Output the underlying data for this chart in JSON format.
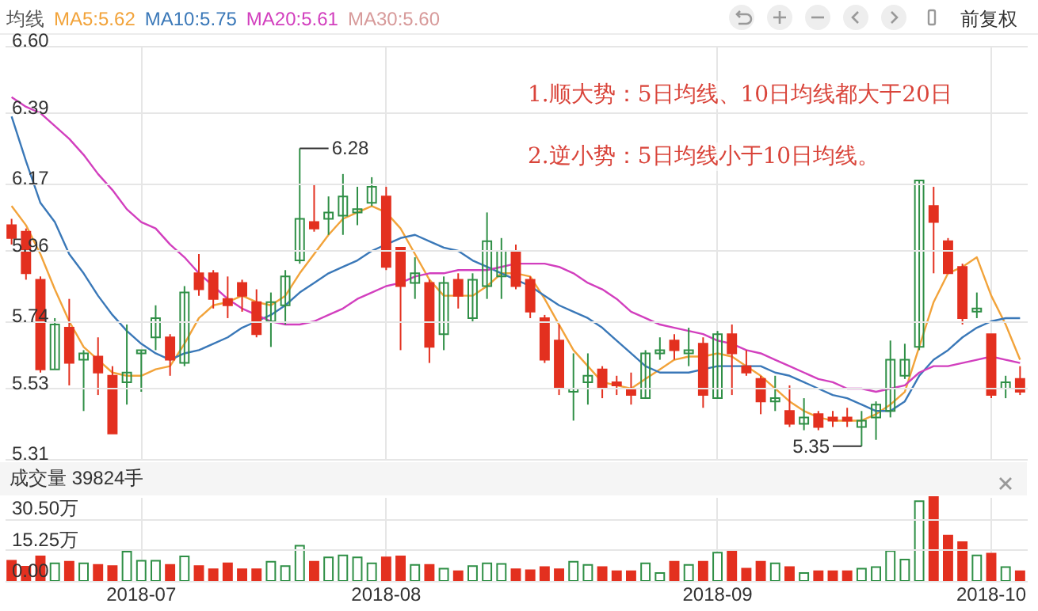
{
  "chart_data": [
    {
      "type": "candlestick",
      "categories": [
        null,
        null,
        null,
        null,
        null,
        null,
        null,
        null,
        null,
        "2018-07",
        null,
        null,
        null,
        null,
        null,
        null,
        null,
        null,
        null,
        null,
        null,
        null,
        null,
        null,
        null,
        null,
        "2018-08",
        null,
        null,
        null,
        null,
        null,
        null,
        null,
        null,
        null,
        null,
        null,
        null,
        null,
        null,
        null,
        null,
        null,
        null,
        null,
        null,
        null,
        null,
        "2018-09",
        null,
        null,
        null,
        null,
        null,
        null,
        null,
        null,
        null,
        null,
        null,
        null,
        null,
        null,
        null,
        null,
        null,
        null,
        "2018-10",
        null,
        null
      ],
      "ohlc": [
        [
          6.04,
          6.06,
          5.98,
          6.0
        ],
        [
          6.02,
          6.03,
          5.87,
          5.89
        ],
        [
          5.87,
          5.88,
          5.58,
          5.59
        ],
        [
          5.59,
          5.75,
          5.59,
          5.73
        ],
        [
          5.72,
          5.81,
          5.54,
          5.61
        ],
        [
          5.62,
          5.65,
          5.46,
          5.64
        ],
        [
          5.63,
          5.69,
          5.51,
          5.58
        ],
        [
          5.57,
          5.6,
          5.39,
          5.39
        ],
        [
          5.55,
          5.73,
          5.48,
          5.58
        ],
        [
          5.64,
          5.65,
          5.52,
          5.65
        ],
        [
          5.69,
          5.79,
          5.65,
          5.75
        ],
        [
          5.69,
          5.7,
          5.57,
          5.62
        ],
        [
          5.61,
          5.85,
          5.6,
          5.83
        ],
        [
          5.89,
          5.95,
          5.82,
          5.84
        ],
        [
          5.89,
          5.9,
          5.78,
          5.81
        ],
        [
          5.81,
          5.88,
          5.75,
          5.79
        ],
        [
          5.86,
          5.87,
          5.77,
          5.82
        ],
        [
          5.8,
          5.84,
          5.69,
          5.7
        ],
        [
          5.74,
          5.83,
          5.66,
          5.8
        ],
        [
          5.79,
          5.9,
          5.73,
          5.88
        ],
        [
          5.93,
          6.28,
          5.92,
          6.06
        ],
        [
          6.05,
          6.17,
          6.02,
          6.03
        ],
        [
          6.06,
          6.13,
          6.01,
          6.08
        ],
        [
          6.07,
          6.2,
          6.01,
          6.13
        ],
        [
          6.08,
          6.16,
          6.04,
          6.09
        ],
        [
          6.11,
          6.19,
          6.1,
          6.16
        ],
        [
          6.13,
          6.16,
          5.9,
          5.91
        ],
        [
          5.97,
          5.97,
          5.65,
          5.85
        ],
        [
          5.86,
          5.94,
          5.81,
          5.89
        ],
        [
          5.86,
          5.87,
          5.61,
          5.66
        ],
        [
          5.7,
          5.88,
          5.65,
          5.86
        ],
        [
          5.87,
          5.89,
          5.78,
          5.82
        ],
        [
          5.75,
          5.89,
          5.74,
          5.87
        ],
        [
          5.85,
          6.08,
          5.81,
          5.99
        ],
        [
          5.88,
          6.0,
          5.81,
          5.96
        ],
        [
          5.96,
          5.98,
          5.84,
          5.85
        ],
        [
          5.87,
          5.88,
          5.75,
          5.77
        ],
        [
          5.75,
          5.76,
          5.61,
          5.62
        ],
        [
          5.68,
          5.73,
          5.51,
          5.53
        ],
        [
          5.52,
          5.64,
          5.43,
          5.53
        ],
        [
          5.55,
          5.64,
          5.48,
          5.57
        ],
        [
          5.59,
          5.6,
          5.5,
          5.53
        ],
        [
          5.55,
          5.57,
          5.51,
          5.54
        ],
        [
          5.53,
          5.58,
          5.48,
          5.51
        ],
        [
          5.5,
          5.65,
          5.5,
          5.64
        ],
        [
          5.64,
          5.69,
          5.62,
          5.65
        ],
        [
          5.68,
          5.7,
          5.62,
          5.65
        ],
        [
          5.64,
          5.72,
          5.6,
          5.65
        ],
        [
          5.67,
          5.69,
          5.47,
          5.51
        ],
        [
          5.5,
          5.71,
          5.5,
          5.7
        ],
        [
          5.7,
          5.73,
          5.51,
          5.64
        ],
        [
          5.6,
          5.65,
          5.57,
          5.58
        ],
        [
          5.56,
          5.57,
          5.45,
          5.49
        ],
        [
          5.49,
          5.57,
          5.46,
          5.5
        ],
        [
          5.46,
          5.54,
          5.41,
          5.42
        ],
        [
          5.42,
          5.5,
          5.4,
          5.44
        ],
        [
          5.45,
          5.46,
          5.4,
          5.41
        ],
        [
          5.44,
          5.46,
          5.41,
          5.43
        ],
        [
          5.44,
          5.47,
          5.41,
          5.43
        ],
        [
          5.41,
          5.46,
          5.35,
          5.43
        ],
        [
          5.44,
          5.49,
          5.37,
          5.48
        ],
        [
          5.46,
          5.68,
          5.44,
          5.62
        ],
        [
          5.57,
          5.67,
          5.56,
          5.62
        ],
        [
          5.66,
          6.18,
          5.65,
          6.18
        ],
        [
          6.1,
          6.16,
          5.89,
          6.05
        ],
        [
          5.99,
          6.0,
          5.89,
          5.89
        ],
        [
          5.91,
          5.92,
          5.73,
          5.75
        ],
        [
          5.77,
          5.83,
          5.75,
          5.78
        ],
        [
          5.7,
          5.7,
          5.5,
          5.51
        ],
        [
          5.53,
          5.57,
          5.5,
          5.55
        ],
        [
          5.56,
          5.6,
          5.51,
          5.52
        ]
      ],
      "colors": [
        "#e3301f",
        "#e3301f",
        "#e3301f",
        "#2f8f46",
        "#e3301f",
        "#2f8f46",
        "#e3301f",
        "#e3301f",
        "#2f8f46",
        "#2f8f46",
        "#2f8f46",
        "#e3301f",
        "#2f8f46",
        "#e3301f",
        "#e3301f",
        "#e3301f",
        "#e3301f",
        "#e3301f",
        "#2f8f46",
        "#2f8f46",
        "#2f8f46",
        "#e3301f",
        "#2f8f46",
        "#2f8f46",
        "#2f8f46",
        "#2f8f46",
        "#e3301f",
        "#e3301f",
        "#2f8f46",
        "#e3301f",
        "#2f8f46",
        "#e3301f",
        "#2f8f46",
        "#2f8f46",
        "#2f8f46",
        "#e3301f",
        "#e3301f",
        "#e3301f",
        "#e3301f",
        "#2f8f46",
        "#2f8f46",
        "#e3301f",
        "#e3301f",
        "#e3301f",
        "#2f8f46",
        "#2f8f46",
        "#e3301f",
        "#2f8f46",
        "#e3301f",
        "#2f8f46",
        "#e3301f",
        "#e3301f",
        "#e3301f",
        "#2f8f46",
        "#e3301f",
        "#2f8f46",
        "#e3301f",
        "#e3301f",
        "#e3301f",
        "#2f8f46",
        "#2f8f46",
        "#2f8f46",
        "#2f8f46",
        "#2f8f46",
        "#e3301f",
        "#e3301f",
        "#e3301f",
        "#2f8f46",
        "#e3301f",
        "#2f8f46",
        "#e3301f"
      ],
      "series": [
        {
          "name": "MA5:5.62",
          "type": "line",
          "color": "#f2a33a",
          "values": [
            6.1,
            6.04,
            5.95,
            5.84,
            5.74,
            5.66,
            5.62,
            5.58,
            5.57,
            5.57,
            5.59,
            5.6,
            5.67,
            5.75,
            5.79,
            5.8,
            5.82,
            5.8,
            5.79,
            5.82,
            5.89,
            5.95,
            6.01,
            6.06,
            6.08,
            6.1,
            6.08,
            6.03,
            5.95,
            5.87,
            5.82,
            5.82,
            5.82,
            5.85,
            5.89,
            5.89,
            5.88,
            5.81,
            5.73,
            5.65,
            5.6,
            5.55,
            5.54,
            5.53,
            5.56,
            5.59,
            5.62,
            5.63,
            5.63,
            5.64,
            5.63,
            5.6,
            5.57,
            5.53,
            5.49,
            5.46,
            5.44,
            5.43,
            5.43,
            5.43,
            5.45,
            5.48,
            5.52,
            5.66,
            5.8,
            5.89,
            5.91,
            5.94,
            5.82,
            5.73,
            5.62
          ]
        },
        {
          "name": "MA10:5.75",
          "type": "line",
          "color": "#3a78b8",
          "values": [
            6.38,
            6.24,
            6.11,
            6.05,
            5.95,
            5.89,
            5.82,
            5.76,
            5.71,
            5.67,
            5.64,
            5.62,
            5.64,
            5.65,
            5.67,
            5.69,
            5.72,
            5.74,
            5.76,
            5.79,
            5.83,
            5.86,
            5.89,
            5.91,
            5.93,
            5.96,
            5.98,
            6.0,
            6.01,
            5.99,
            5.97,
            5.96,
            5.93,
            5.91,
            5.89,
            5.87,
            5.85,
            5.82,
            5.79,
            5.77,
            5.75,
            5.72,
            5.68,
            5.64,
            5.6,
            5.58,
            5.58,
            5.58,
            5.59,
            5.6,
            5.6,
            5.6,
            5.6,
            5.58,
            5.57,
            5.55,
            5.53,
            5.51,
            5.5,
            5.48,
            5.46,
            5.46,
            5.49,
            5.57,
            5.62,
            5.65,
            5.69,
            5.72,
            5.74,
            5.75,
            5.75
          ]
        },
        {
          "name": "MA20:5.61",
          "type": "line",
          "color": "#d23fbe",
          "values": [
            6.44,
            6.41,
            6.39,
            6.35,
            6.31,
            6.26,
            6.2,
            6.15,
            6.09,
            6.05,
            6.03,
            5.98,
            5.94,
            5.89,
            5.85,
            5.81,
            5.78,
            5.76,
            5.74,
            5.73,
            5.73,
            5.74,
            5.76,
            5.78,
            5.81,
            5.83,
            5.85,
            5.86,
            5.88,
            5.89,
            5.89,
            5.9,
            5.9,
            5.9,
            5.91,
            5.92,
            5.92,
            5.92,
            5.91,
            5.89,
            5.86,
            5.84,
            5.81,
            5.77,
            5.75,
            5.73,
            5.72,
            5.71,
            5.7,
            5.68,
            5.67,
            5.65,
            5.64,
            5.62,
            5.6,
            5.58,
            5.56,
            5.55,
            5.53,
            5.53,
            5.52,
            5.53,
            5.54,
            5.58,
            5.6,
            5.6,
            5.61,
            5.62,
            5.63,
            5.62,
            5.61
          ]
        }
      ],
      "ylim": [
        5.31,
        6.6
      ],
      "yticks": [
        5.31,
        5.53,
        5.74,
        5.96,
        6.17,
        6.39,
        {
          "value": 6.6,
          "label": "6.60"
        }
      ],
      "legend": "top left",
      "legend_title": "均线",
      "grid": true,
      "tick_labels": "y",
      "annotations": [
        "6.28",
        "5.35",
        "1.顺大势：5日均线、10日均线都大于20日",
        "2.逆小势：5日均线小于10日均线。",
        "前复权",
        "MA30:5.60"
      ]
    },
    {
      "type": "bar",
      "title": "成交量 39824手",
      "categories": [
        null,
        null,
        null,
        null,
        null,
        null,
        null,
        null,
        null,
        "2018-07",
        null,
        null,
        null,
        null,
        null,
        null,
        null,
        null,
        null,
        null,
        null,
        null,
        null,
        null,
        null,
        null,
        "2018-08",
        null,
        null,
        null,
        null,
        null,
        null,
        null,
        null,
        null,
        null,
        null,
        null,
        null,
        null,
        null,
        null,
        null,
        null,
        null,
        null,
        null,
        null,
        "2018-09",
        null,
        null,
        null,
        null,
        null,
        null,
        null,
        null,
        null,
        null,
        null,
        null,
        null,
        null,
        null,
        null,
        null,
        null,
        "2018-10",
        null,
        null
      ],
      "values": [
        9.9,
        7.0,
        12.0,
        8.6,
        9.4,
        8.6,
        7.8,
        7.3,
        14.3,
        9.9,
        9.9,
        7.8,
        12.0,
        7.3,
        5.7,
        8.6,
        5.7,
        5.7,
        9.4,
        7.3,
        17.2,
        9.4,
        11.5,
        12.5,
        11.5,
        8.6,
        11.5,
        12.0,
        7.8,
        7.8,
        6.0,
        4.7,
        7.3,
        8.6,
        8.3,
        5.7,
        5.2,
        6.8,
        5.7,
        9.4,
        7.8,
        6.8,
        4.7,
        4.7,
        8.6,
        3.9,
        9.4,
        7.8,
        9.4,
        13.8,
        15.1,
        6.0,
        9.4,
        8.6,
        6.8,
        3.9,
        4.7,
        4.7,
        4.7,
        6.0,
        6.8,
        14.6,
        10.4,
        39,
        41,
        22.1,
        19.0,
        12.5,
        13.3,
        6.8,
        4.7
      ],
      "colors": [
        "#e3301f",
        "#e3301f",
        "#e3301f",
        "#2f8f46",
        "#e3301f",
        "#2f8f46",
        "#e3301f",
        "#e3301f",
        "#2f8f46",
        "#2f8f46",
        "#2f8f46",
        "#e3301f",
        "#2f8f46",
        "#e3301f",
        "#e3301f",
        "#e3301f",
        "#e3301f",
        "#e3301f",
        "#2f8f46",
        "#2f8f46",
        "#2f8f46",
        "#e3301f",
        "#2f8f46",
        "#2f8f46",
        "#2f8f46",
        "#2f8f46",
        "#e3301f",
        "#e3301f",
        "#2f8f46",
        "#e3301f",
        "#2f8f46",
        "#e3301f",
        "#2f8f46",
        "#2f8f46",
        "#2f8f46",
        "#e3301f",
        "#e3301f",
        "#e3301f",
        "#e3301f",
        "#2f8f46",
        "#2f8f46",
        "#e3301f",
        "#e3301f",
        "#e3301f",
        "#2f8f46",
        "#2f8f46",
        "#e3301f",
        "#2f8f46",
        "#e3301f",
        "#2f8f46",
        "#e3301f",
        "#e3301f",
        "#e3301f",
        "#2f8f46",
        "#e3301f",
        "#2f8f46",
        "#e3301f",
        "#e3301f",
        "#e3301f",
        "#2f8f46",
        "#2f8f46",
        "#2f8f46",
        "#2f8f46",
        "#2f8f46",
        "#e3301f",
        "#e3301f",
        "#e3301f",
        "#2f8f46",
        "#e3301f",
        "#2f8f46",
        "#e3301f"
      ],
      "ylim": [
        0,
        41
      ],
      "yticks": [
        {
          "value": 0,
          "label": "0.00"
        },
        {
          "value": 15.25,
          "label": "15.25万"
        },
        {
          "value": 30.5,
          "label": "30.50万"
        }
      ],
      "grid": true
    }
  ]
}
